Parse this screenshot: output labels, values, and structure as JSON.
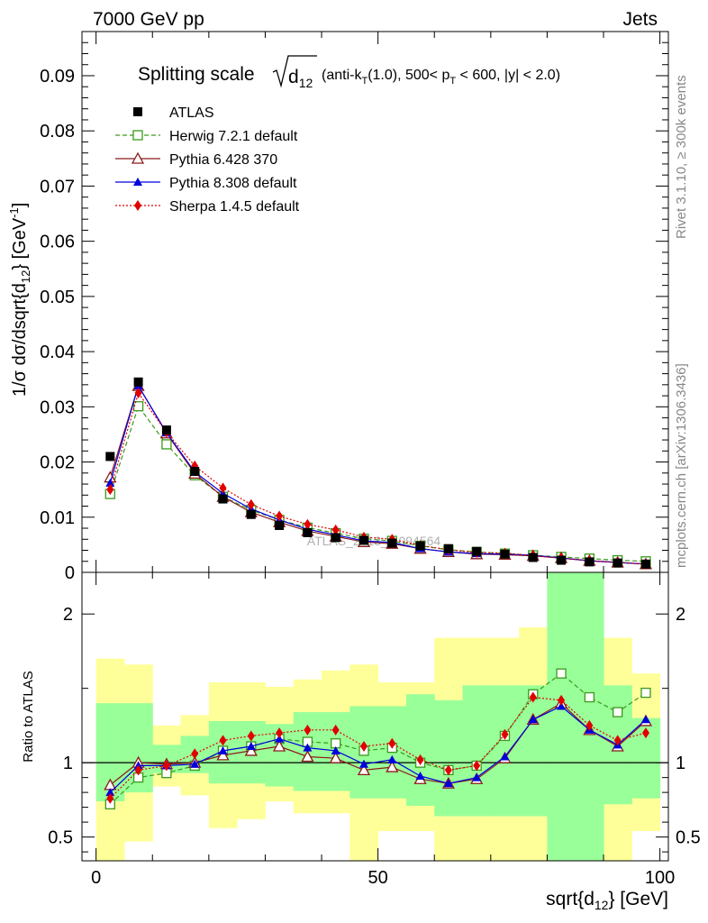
{
  "header": {
    "left": "7000 GeV pp",
    "right": "Jets"
  },
  "side_labels": {
    "rivet": "Rivet 3.1.10, ≥ 300k events",
    "mcplots": "mcplots.cern.ch [arXiv:1306.3436]"
  },
  "watermark": "ATLAS_2013_I1094564",
  "colors": {
    "atlas": "#000000",
    "herwig": "#3a9a1a",
    "pythia6": "#8b1a1a",
    "pythia8": "#0000dd",
    "sherpa": "#e00000",
    "band_inner": "#99ff99",
    "band_outer": "#ffff99"
  },
  "chart_data": [
    {
      "type": "line",
      "panel": "main",
      "title_main": "Splitting scale",
      "title_sqrt_var": "d",
      "title_sqrt_sub": "12",
      "title_cond_1": "(anti-k",
      "title_cond_sub": "T",
      "title_cond_2": "(1.0), 500< p",
      "title_cond_sub2": "T",
      "title_cond_3": " < 600, |y| < 2.0)",
      "ylabel": "1/σ dσ/dsqrt{d",
      "ylabel_sub": "12",
      "ylabel_unit": "} [GeV",
      "ylabel_sup": "-1",
      "ylabel_end": "]",
      "xlim": [
        -2.5,
        101.5
      ],
      "ylim": [
        0,
        0.098
      ],
      "yticks": [
        {
          "v": 0,
          "label": "0"
        },
        {
          "v": 0.01,
          "label": "0.01"
        },
        {
          "v": 0.02,
          "label": "0.02"
        },
        {
          "v": 0.03,
          "label": "0.03"
        },
        {
          "v": 0.04,
          "label": "0.04"
        },
        {
          "v": 0.05,
          "label": "0.05"
        },
        {
          "v": 0.06,
          "label": "0.06"
        },
        {
          "v": 0.07,
          "label": "0.07"
        },
        {
          "v": 0.08,
          "label": "0.08"
        },
        {
          "v": 0.09,
          "label": "0.09"
        }
      ],
      "x": [
        2.5,
        7.5,
        12.5,
        17.5,
        22.5,
        27.5,
        32.5,
        37.5,
        42.5,
        47.5,
        52.5,
        57.5,
        62.5,
        67.5,
        72.5,
        77.5,
        82.5,
        87.5,
        92.5,
        97.5
      ],
      "series": [
        {
          "key": "atlas",
          "name": "ATLAS",
          "marker": "square-filled",
          "line": "none",
          "values": [
            0.021,
            0.0345,
            0.0258,
            0.0183,
            0.0133,
            0.0105,
            0.0085,
            0.0072,
            0.0063,
            0.0058,
            0.0053,
            0.0048,
            0.0043,
            0.0038,
            0.0033,
            0.0027,
            0.0022,
            0.0019,
            0.0017,
            0.0015
          ]
        },
        {
          "key": "herwig",
          "name": "Herwig 7.2.1 default",
          "marker": "square-open",
          "line": "dashed",
          "values": [
            0.0142,
            0.0301,
            0.0232,
            0.0176,
            0.0137,
            0.0113,
            0.0095,
            0.0081,
            0.0071,
            0.0061,
            0.0057,
            0.0048,
            0.0041,
            0.0037,
            0.0034,
            0.0031,
            0.0028,
            0.0025,
            0.0022,
            0.002
          ]
        },
        {
          "key": "pythia6",
          "name": "Pythia 6.428 370",
          "marker": "triangle-open",
          "line": "solid",
          "values": [
            0.0172,
            0.0338,
            0.0252,
            0.0179,
            0.0137,
            0.0109,
            0.0091,
            0.0075,
            0.0065,
            0.0055,
            0.0052,
            0.0043,
            0.0037,
            0.0033,
            0.0032,
            0.003,
            0.0026,
            0.0021,
            0.0018,
            0.0015
          ]
        },
        {
          "key": "pythia8",
          "name": "Pythia 8.308 default",
          "marker": "triangle-filled",
          "line": "solid",
          "values": [
            0.0162,
            0.0338,
            0.0253,
            0.0182,
            0.0143,
            0.0115,
            0.0095,
            0.0078,
            0.0068,
            0.0057,
            0.0054,
            0.0043,
            0.0037,
            0.0034,
            0.0033,
            0.0031,
            0.0026,
            0.0021,
            0.0018,
            0.0015
          ]
        },
        {
          "key": "sherpa",
          "name": "Sherpa 1.4.5 default",
          "marker": "diamond-filled",
          "line": "dotted",
          "values": [
            0.015,
            0.0325,
            0.0254,
            0.0193,
            0.0153,
            0.0123,
            0.0102,
            0.0087,
            0.0077,
            0.0064,
            0.006,
            0.0049,
            0.0041,
            0.0036,
            0.0035,
            0.003,
            0.0026,
            0.0021,
            0.0018,
            0.0015
          ]
        }
      ]
    },
    {
      "type": "line",
      "panel": "ratio",
      "ylabel": "Ratio to ATLAS",
      "xlabel": "sqrt{d",
      "xlabel_sub": "12",
      "xlabel_end": "} [GeV]",
      "xlim": [
        -2.5,
        101.5
      ],
      "ylim": [
        0.34,
        2.28
      ],
      "xticks": [
        {
          "v": 0,
          "label": "0"
        },
        {
          "v": 50,
          "label": "50"
        },
        {
          "v": 100,
          "label": "100"
        }
      ],
      "yticks": [
        {
          "v": 0.5,
          "label": "0.5"
        },
        {
          "v": 1,
          "label": "1"
        },
        {
          "v": 2,
          "label": "2"
        }
      ],
      "band_inner": {
        "low": [
          0.74,
          0.8,
          0.93,
          0.93,
          0.86,
          0.86,
          0.84,
          0.81,
          0.81,
          0.76,
          0.76,
          0.71,
          0.64,
          0.64,
          0.64,
          0.64,
          0.34,
          0.34,
          0.72,
          0.76
        ],
        "high": [
          1.4,
          1.4,
          1.12,
          1.18,
          1.28,
          1.28,
          1.26,
          1.34,
          1.34,
          1.38,
          1.38,
          1.46,
          1.42,
          1.52,
          1.52,
          1.52,
          2.28,
          2.28,
          1.52,
          1.3
        ]
      },
      "band_outer": {
        "low": [
          0.34,
          0.47,
          0.84,
          0.78,
          0.56,
          0.62,
          0.74,
          0.66,
          0.66,
          0.34,
          0.54,
          0.54,
          0.34,
          0.34,
          0.34,
          0.34,
          0.34,
          0.34,
          0.34,
          0.54
        ],
        "high": [
          1.7,
          1.66,
          1.25,
          1.32,
          1.54,
          1.54,
          1.51,
          1.56,
          1.62,
          1.66,
          1.54,
          1.54,
          1.84,
          1.84,
          1.84,
          1.91,
          2.28,
          2.28,
          1.84,
          1.6
        ]
      },
      "series": [
        {
          "key": "herwig",
          "values": [
            0.72,
            0.9,
            0.93,
            0.98,
            1.08,
            1.11,
            1.16,
            1.14,
            1.13,
            1.08,
            1.1,
            1.0,
            0.95,
            0.98,
            1.18,
            1.46,
            1.6,
            1.44,
            1.34,
            1.47
          ]
        },
        {
          "key": "pythia6",
          "values": [
            0.85,
            1.0,
            0.99,
            1.0,
            1.05,
            1.08,
            1.11,
            1.04,
            1.03,
            0.95,
            0.97,
            0.89,
            0.86,
            0.89,
            1.03,
            1.29,
            1.4,
            1.22,
            1.11,
            1.28
          ]
        },
        {
          "key": "pythia8",
          "values": [
            0.8,
            0.98,
            0.98,
            0.99,
            1.08,
            1.11,
            1.16,
            1.1,
            1.08,
            0.99,
            1.02,
            0.91,
            0.86,
            0.9,
            1.04,
            1.29,
            1.38,
            1.22,
            1.12,
            1.29
          ]
        },
        {
          "key": "sherpa",
          "values": [
            0.76,
            0.95,
            0.98,
            1.06,
            1.15,
            1.18,
            1.2,
            1.22,
            1.22,
            1.11,
            1.13,
            1.02,
            0.95,
            0.98,
            1.19,
            1.44,
            1.42,
            1.25,
            1.15,
            1.2
          ]
        }
      ]
    }
  ]
}
